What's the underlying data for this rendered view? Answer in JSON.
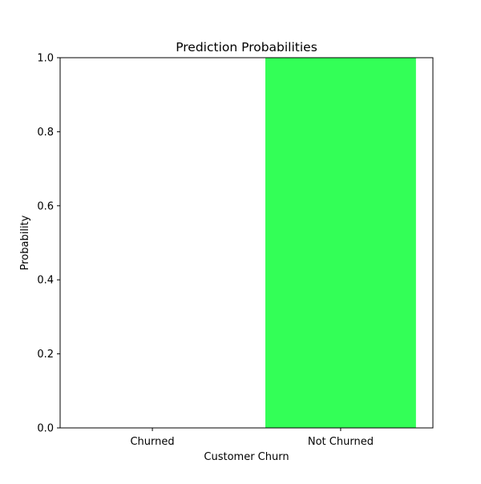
{
  "chart_data": {
    "type": "bar",
    "title": "Prediction Probabilities",
    "xlabel": "Customer Churn",
    "ylabel": "Probability",
    "categories": [
      "Churned",
      "Not Churned"
    ],
    "values": [
      0.0,
      1.0
    ],
    "bar_colors": [
      "#33ff57",
      "#33ff57"
    ],
    "ylim": [
      0,
      1
    ],
    "yticks": [
      0.0,
      0.2,
      0.4,
      0.6,
      0.8,
      1.0
    ],
    "ytick_labels": [
      "0.0",
      "0.2",
      "0.4",
      "0.6",
      "0.8",
      "1.0"
    ],
    "grid": false,
    "legend": "none"
  }
}
